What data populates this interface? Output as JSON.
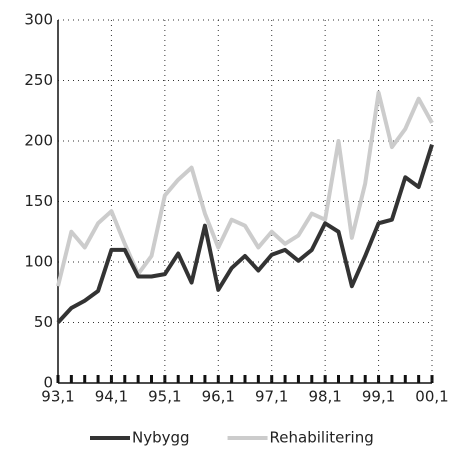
{
  "chart_data": {
    "type": "line",
    "categories": [
      "93,1",
      null,
      null,
      null,
      "94,1",
      null,
      null,
      null,
      "95,1",
      null,
      null,
      null,
      "96,1",
      null,
      null,
      null,
      "97,1",
      null,
      null,
      null,
      "98,1",
      null,
      null,
      null,
      "99,1",
      null,
      null,
      null,
      "00,1"
    ],
    "series": [
      {
        "name": "Nybygg",
        "color": "#333333",
        "values": [
          50,
          62,
          68,
          76,
          110,
          110,
          88,
          88,
          90,
          107,
          83,
          130,
          77,
          95,
          105,
          93,
          106,
          110,
          101,
          110,
          132,
          125,
          80,
          105,
          132,
          135,
          170,
          162,
          197
        ]
      },
      {
        "name": "Rehabilitering",
        "color": "#cccccc",
        "values": [
          80,
          125,
          112,
          132,
          142,
          115,
          90,
          105,
          155,
          168,
          178,
          140,
          112,
          135,
          130,
          112,
          125,
          115,
          122,
          140,
          135,
          200,
          120,
          165,
          240,
          195,
          210,
          235,
          215
        ]
      }
    ],
    "ylim": [
      0,
      300
    ],
    "yticks": [
      0,
      50,
      100,
      150,
      200,
      250,
      300
    ],
    "grid": true
  }
}
